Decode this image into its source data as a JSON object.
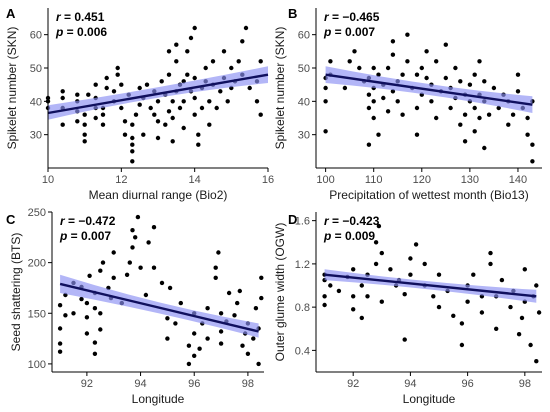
{
  "colors": {
    "band": "#8b8ff2",
    "fit_line": "#10105e",
    "points": "#000000"
  },
  "chart_data": [
    {
      "panel": "A",
      "type": "scatter",
      "xlabel": "Mean diurnal range (Bio2)",
      "ylabel": "Spikelet number (SKN)",
      "xlim": [
        10,
        16
      ],
      "ylim": [
        20,
        68
      ],
      "xticks": [
        10,
        12,
        14,
        16
      ],
      "yticks": [
        30,
        40,
        50,
        60
      ],
      "r_label": "r",
      "r_value": "= 0.451",
      "p_label": "p",
      "p_value": "= 0.006",
      "fit": {
        "x": [
          10,
          16
        ],
        "y": [
          36.5,
          48
        ],
        "ci_low_end": [
          34.5,
          45.5
        ],
        "ci_high_end": [
          38.8,
          50.5
        ],
        "ci_low_mid": 42.2,
        "ci_high_mid": 43.8
      },
      "points": [
        [
          10,
          38
        ],
        [
          10,
          40
        ],
        [
          10,
          41
        ],
        [
          10.4,
          33
        ],
        [
          10.4,
          38
        ],
        [
          10.4,
          41
        ],
        [
          10.4,
          43
        ],
        [
          10.8,
          34
        ],
        [
          10.8,
          37
        ],
        [
          10.8,
          40
        ],
        [
          10.8,
          42
        ],
        [
          11,
          28
        ],
        [
          11,
          30
        ],
        [
          11,
          33
        ],
        [
          11,
          36
        ],
        [
          11.1,
          42
        ],
        [
          11.3,
          35
        ],
        [
          11.3,
          38
        ],
        [
          11.3,
          41
        ],
        [
          11.3,
          45
        ],
        [
          11.5,
          33
        ],
        [
          11.5,
          36
        ],
        [
          11.5,
          38
        ],
        [
          11.6,
          44
        ],
        [
          11.6,
          47
        ],
        [
          11.8,
          40
        ],
        [
          11.8,
          43
        ],
        [
          11.9,
          48
        ],
        [
          11.9,
          50
        ],
        [
          12,
          38
        ],
        [
          12,
          45
        ],
        [
          12.1,
          30
        ],
        [
          12.1,
          34
        ],
        [
          12.2,
          42
        ],
        [
          12.3,
          22
        ],
        [
          12.3,
          25
        ],
        [
          12.3,
          27
        ],
        [
          12.3,
          29
        ],
        [
          12.3,
          33
        ],
        [
          12.4,
          36
        ],
        [
          12.5,
          39
        ],
        [
          12.5,
          44
        ],
        [
          12.6,
          30
        ],
        [
          12.6,
          41
        ],
        [
          12.7,
          45
        ],
        [
          12.8,
          38
        ],
        [
          12.9,
          36
        ],
        [
          12.9,
          43
        ],
        [
          13,
          29
        ],
        [
          13,
          34
        ],
        [
          13,
          40
        ],
        [
          13.1,
          46
        ],
        [
          13.2,
          33
        ],
        [
          13.2,
          42
        ],
        [
          13.3,
          37
        ],
        [
          13.3,
          48
        ],
        [
          13.3,
          55
        ],
        [
          13.4,
          28
        ],
        [
          13.4,
          35
        ],
        [
          13.4,
          40
        ],
        [
          13.5,
          43
        ],
        [
          13.5,
          52
        ],
        [
          13.5,
          57
        ],
        [
          13.6,
          38
        ],
        [
          13.6,
          45
        ],
        [
          13.7,
          32
        ],
        [
          13.7,
          40
        ],
        [
          13.7,
          46
        ],
        [
          13.8,
          48
        ],
        [
          13.8,
          55
        ],
        [
          13.9,
          43
        ],
        [
          13.9,
          59
        ],
        [
          14,
          36
        ],
        [
          14,
          41
        ],
        [
          14,
          47
        ],
        [
          14,
          62
        ],
        [
          14.1,
          27
        ],
        [
          14.1,
          30
        ],
        [
          14.2,
          38
        ],
        [
          14.2,
          44
        ],
        [
          14.3,
          46
        ],
        [
          14.3,
          50
        ],
        [
          14.4,
          33
        ],
        [
          14.4,
          40
        ],
        [
          14.5,
          45
        ],
        [
          14.5,
          52
        ],
        [
          14.6,
          38
        ],
        [
          14.7,
          43
        ],
        [
          14.8,
          47
        ],
        [
          14.8,
          55
        ],
        [
          14.9,
          40
        ],
        [
          15,
          44
        ],
        [
          15,
          50
        ],
        [
          15.1,
          46
        ],
        [
          15.2,
          52
        ],
        [
          15.3,
          48
        ],
        [
          15.3,
          58
        ],
        [
          15.4,
          62
        ],
        [
          15.5,
          44
        ],
        [
          15.7,
          40
        ],
        [
          15.7,
          46
        ],
        [
          15.8,
          36
        ],
        [
          15.8,
          52
        ]
      ]
    },
    {
      "panel": "B",
      "type": "scatter",
      "xlabel": "Precipitation of wettest month (Bio13)",
      "ylabel": "Spikelet number (SKN)",
      "xlim": [
        98,
        145
      ],
      "ylim": [
        20,
        68
      ],
      "xticks": [
        100,
        110,
        120,
        130,
        140
      ],
      "yticks": [
        30,
        40,
        50,
        60
      ],
      "r_label": "r",
      "r_value": "= −0.465",
      "p_label": "p",
      "p_value": "= 0.007",
      "fit": {
        "x": [
          100,
          143
        ],
        "y": [
          48,
          39
        ],
        "ci_low_end": [
          45.5,
          36.5
        ],
        "ci_high_end": [
          50.5,
          41.5
        ],
        "ci_low_mid": 42.8,
        "ci_high_mid": 44.4
      },
      "points": [
        [
          100,
          31
        ],
        [
          100,
          40
        ],
        [
          100,
          44
        ],
        [
          100,
          47
        ],
        [
          101,
          48
        ],
        [
          101,
          52
        ],
        [
          104,
          44
        ],
        [
          105,
          52
        ],
        [
          106,
          55
        ],
        [
          107,
          50
        ],
        [
          108,
          46
        ],
        [
          109,
          27
        ],
        [
          109,
          38
        ],
        [
          109,
          42
        ],
        [
          109,
          47
        ],
        [
          110,
          35
        ],
        [
          110,
          40
        ],
        [
          110,
          44
        ],
        [
          110,
          50
        ],
        [
          111,
          30
        ],
        [
          111,
          48
        ],
        [
          112,
          41
        ],
        [
          112,
          45
        ],
        [
          113,
          37
        ],
        [
          113,
          50
        ],
        [
          114,
          43
        ],
        [
          114,
          54
        ],
        [
          114,
          58
        ],
        [
          115,
          40
        ],
        [
          115,
          46
        ],
        [
          116,
          36
        ],
        [
          116,
          48
        ],
        [
          117,
          52
        ],
        [
          117,
          60
        ],
        [
          118,
          44
        ],
        [
          119,
          30
        ],
        [
          119,
          38
        ],
        [
          119,
          48
        ],
        [
          120,
          42
        ],
        [
          120,
          50
        ],
        [
          121,
          47
        ],
        [
          121,
          55
        ],
        [
          122,
          40
        ],
        [
          122,
          45
        ],
        [
          123,
          35
        ],
        [
          123,
          52
        ],
        [
          124,
          43
        ],
        [
          125,
          47
        ],
        [
          125,
          57
        ],
        [
          126,
          38
        ],
        [
          126,
          44
        ],
        [
          127,
          41
        ],
        [
          127,
          50
        ],
        [
          128,
          33
        ],
        [
          128,
          46
        ],
        [
          129,
          28
        ],
        [
          129,
          36
        ],
        [
          129,
          42
        ],
        [
          130,
          40
        ],
        [
          130,
          45
        ],
        [
          131,
          31
        ],
        [
          131,
          38
        ],
        [
          131,
          48
        ],
        [
          132,
          35
        ],
        [
          132,
          42
        ],
        [
          132,
          52
        ],
        [
          133,
          26
        ],
        [
          133,
          40
        ],
        [
          133,
          46
        ],
        [
          134,
          36
        ],
        [
          135,
          44
        ],
        [
          136,
          38
        ],
        [
          137,
          42
        ],
        [
          138,
          33
        ],
        [
          138,
          40
        ],
        [
          139,
          36
        ],
        [
          140,
          43
        ],
        [
          140,
          48
        ],
        [
          141,
          38
        ],
        [
          142,
          30
        ],
        [
          142,
          35
        ],
        [
          143,
          22
        ],
        [
          143,
          27
        ],
        [
          143,
          40
        ]
      ]
    },
    {
      "panel": "C",
      "type": "scatter",
      "xlabel": "Longitude",
      "ylabel": "Seed shattering (BTS)",
      "xlim": [
        90.7,
        98.6
      ],
      "ylim": [
        92,
        250
      ],
      "xticks": [
        92,
        94,
        96,
        98
      ],
      "yticks": [
        100,
        150,
        200,
        250
      ],
      "r_label": "r",
      "r_value": "= −0.472",
      "p_label": "p",
      "p_value": "= 0.007",
      "fit": {
        "x": [
          91,
          98.4
        ],
        "y": [
          179,
          132
        ],
        "ci_low_end": [
          170,
          126
        ],
        "ci_high_end": [
          188,
          140
        ],
        "ci_low_mid": 151.5,
        "ci_high_mid": 157.5
      },
      "points": [
        [
          91,
          112
        ],
        [
          91,
          120
        ],
        [
          91,
          135
        ],
        [
          91,
          158
        ],
        [
          91.2,
          148
        ],
        [
          91.2,
          168
        ],
        [
          91.5,
          150
        ],
        [
          91.5,
          180
        ],
        [
          91.8,
          164
        ],
        [
          91.8,
          176
        ],
        [
          92,
          130
        ],
        [
          92,
          146
        ],
        [
          92,
          160
        ],
        [
          92.1,
          187
        ],
        [
          92.3,
          110
        ],
        [
          92.3,
          121
        ],
        [
          92.3,
          155
        ],
        [
          92.3,
          170
        ],
        [
          92.5,
          134
        ],
        [
          92.5,
          150
        ],
        [
          92.5,
          192
        ],
        [
          92.6,
          200
        ],
        [
          92.8,
          175
        ],
        [
          92.9,
          165
        ],
        [
          93,
          185
        ],
        [
          93,
          210
        ],
        [
          93.3,
          160
        ],
        [
          93.5,
          188
        ],
        [
          93.6,
          200
        ],
        [
          93.7,
          215
        ],
        [
          93.7,
          232
        ],
        [
          93.8,
          225
        ],
        [
          93.9,
          245
        ],
        [
          94,
          195
        ],
        [
          94.2,
          168
        ],
        [
          94.3,
          220
        ],
        [
          94.5,
          195
        ],
        [
          94.5,
          235
        ],
        [
          94.8,
          180
        ],
        [
          95,
          125
        ],
        [
          95,
          145
        ],
        [
          95.1,
          175
        ],
        [
          95.3,
          140
        ],
        [
          95.5,
          160
        ],
        [
          95.8,
          100
        ],
        [
          95.8,
          118
        ],
        [
          96,
          108
        ],
        [
          96,
          130
        ],
        [
          96,
          150
        ],
        [
          96.2,
          115
        ],
        [
          96.3,
          140
        ],
        [
          96.5,
          125
        ],
        [
          96.5,
          155
        ],
        [
          96.8,
          185
        ],
        [
          96.8,
          195
        ],
        [
          96.9,
          210
        ],
        [
          97,
          120
        ],
        [
          97,
          132
        ],
        [
          97,
          150
        ],
        [
          97.2,
          142
        ],
        [
          97.3,
          170
        ],
        [
          97.5,
          148
        ],
        [
          97.6,
          160
        ],
        [
          97.7,
          172
        ],
        [
          97.8,
          118
        ],
        [
          97.9,
          130
        ],
        [
          98,
          140
        ],
        [
          98,
          110
        ],
        [
          98.2,
          125
        ],
        [
          98.3,
          155
        ],
        [
          98.4,
          100
        ],
        [
          98.4,
          135
        ],
        [
          98.5,
          165
        ],
        [
          98.5,
          185
        ]
      ]
    },
    {
      "panel": "D",
      "type": "scatter",
      "xlabel": "Longitude",
      "ylabel": "Outer glume width (OGW)",
      "xlim": [
        90.7,
        98.6
      ],
      "ylim": [
        0.2,
        1.68
      ],
      "xticks": [
        92,
        94,
        96,
        98
      ],
      "yticks": [
        0.4,
        0.8,
        1.2,
        1.6
      ],
      "r_label": "r",
      "r_value": "= −0.423",
      "p_label": "p",
      "p_value": "= 0.009",
      "fit": {
        "x": [
          91,
          98.4
        ],
        "y": [
          1.1,
          0.9
        ],
        "ci_low_end": [
          1.05,
          0.84
        ],
        "ci_high_end": [
          1.15,
          0.96
        ],
        "ci_low_mid": 0.98,
        "ci_high_mid": 1.02
      },
      "points": [
        [
          91,
          0.82
        ],
        [
          91,
          0.9
        ],
        [
          91,
          1.05
        ],
        [
          91,
          1.1
        ],
        [
          91.2,
          1.0
        ],
        [
          91.5,
          0.95
        ],
        [
          91.8,
          1.08
        ],
        [
          92,
          0.78
        ],
        [
          92,
          0.9
        ],
        [
          92,
          1.15
        ],
        [
          92.3,
          0.7
        ],
        [
          92.3,
          1.0
        ],
        [
          92.5,
          0.9
        ],
        [
          92.5,
          1.1
        ],
        [
          92.8,
          1.2
        ],
        [
          92.8,
          1.4
        ],
        [
          92.9,
          1.55
        ],
        [
          93,
          1.3
        ],
        [
          93,
          0.85
        ],
        [
          93.3,
          1.15
        ],
        [
          93.5,
          1.0
        ],
        [
          93.6,
          1.05
        ],
        [
          93.8,
          0.5
        ],
        [
          93.8,
          0.92
        ],
        [
          94,
          1.1
        ],
        [
          94,
          1.25
        ],
        [
          94.2,
          1.38
        ],
        [
          94.5,
          1.0
        ],
        [
          94.5,
          1.2
        ],
        [
          94.8,
          0.9
        ],
        [
          95,
          0.8
        ],
        [
          95,
          1.1
        ],
        [
          95.3,
          0.95
        ],
        [
          95.5,
          0.72
        ],
        [
          95.8,
          0.45
        ],
        [
          95.8,
          0.65
        ],
        [
          96,
          0.85
        ],
        [
          96,
          1.0
        ],
        [
          96.2,
          1.1
        ],
        [
          96.5,
          0.75
        ],
        [
          96.5,
          0.9
        ],
        [
          96.8,
          1.2
        ],
        [
          96.8,
          1.3
        ],
        [
          97,
          0.6
        ],
        [
          97,
          0.9
        ],
        [
          97.2,
          1.05
        ],
        [
          97.5,
          0.8
        ],
        [
          97.6,
          0.95
        ],
        [
          97.8,
          0.55
        ],
        [
          97.9,
          0.7
        ],
        [
          98,
          0.85
        ],
        [
          98,
          1.15
        ],
        [
          98.2,
          0.45
        ],
        [
          98.3,
          0.9
        ],
        [
          98.4,
          0.3
        ],
        [
          98.4,
          1.0
        ],
        [
          98.5,
          0.75
        ]
      ]
    }
  ]
}
